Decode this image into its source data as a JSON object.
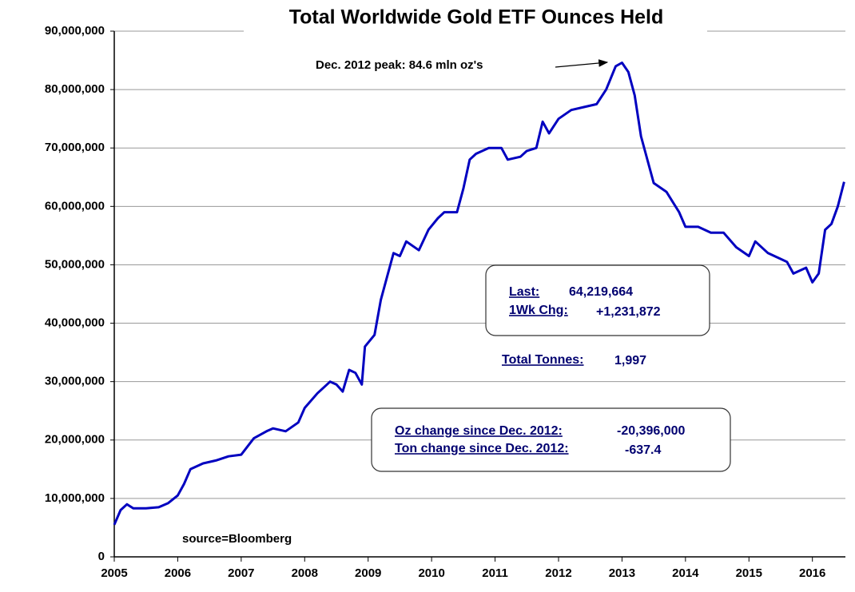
{
  "chart_data": {
    "type": "line",
    "title": "Total Worldwide Gold ETF Ounces Held",
    "color": "#0000c0",
    "xlim": [
      2005,
      2016.52
    ],
    "xticks": [
      2005,
      2006,
      2007,
      2008,
      2009,
      2010,
      2011,
      2012,
      2013,
      2014,
      2015,
      2016
    ],
    "ylim": [
      0,
      90000000
    ],
    "yticks": [
      0,
      {
        "value": 10000000,
        "label": "10,000,000"
      },
      {
        "value": 20000000,
        "label": "20,000,000"
      },
      {
        "value": 30000000,
        "label": "30,000,000"
      },
      {
        "value": 40000000,
        "label": "40,000,000"
      },
      {
        "value": 50000000,
        "label": "50,000,000"
      },
      {
        "value": 60000000,
        "label": "60,000,000"
      },
      {
        "value": 70000000,
        "label": "70,000,000"
      },
      {
        "value": 80000000,
        "label": "80,000,000"
      },
      {
        "value": 90000000,
        "label": "90,000,000"
      }
    ],
    "grid": true,
    "x": [
      2005.0,
      2005.1,
      2005.2,
      2005.3,
      2005.5,
      2005.7,
      2005.85,
      2006.0,
      2006.1,
      2006.2,
      2006.4,
      2006.6,
      2006.8,
      2007.0,
      2007.2,
      2007.4,
      2007.5,
      2007.7,
      2007.9,
      2008.0,
      2008.2,
      2008.4,
      2008.5,
      2008.6,
      2008.7,
      2008.8,
      2008.9,
      2008.95,
      2009.1,
      2009.2,
      2009.3,
      2009.4,
      2009.5,
      2009.6,
      2009.8,
      2009.95,
      2010.1,
      2010.2,
      2010.4,
      2010.5,
      2010.6,
      2010.7,
      2010.9,
      2011.1,
      2011.2,
      2011.4,
      2011.5,
      2011.65,
      2011.75,
      2011.85,
      2012.0,
      2012.2,
      2012.4,
      2012.6,
      2012.75,
      2012.9,
      2013.0,
      2013.1,
      2013.2,
      2013.3,
      2013.5,
      2013.7,
      2013.9,
      2014.0,
      2014.2,
      2014.4,
      2014.6,
      2014.8,
      2015.0,
      2015.1,
      2015.3,
      2015.5,
      2015.6,
      2015.7,
      2015.9,
      2016.0,
      2016.1,
      2016.2,
      2016.3,
      2016.4,
      2016.5
    ],
    "values": [
      5500000,
      8000000,
      9000000,
      8300000,
      8300000,
      8500000,
      9200000,
      10500000,
      12500000,
      15000000,
      16000000,
      16500000,
      17200000,
      17500000,
      20300000,
      21500000,
      22000000,
      21500000,
      23000000,
      25500000,
      28000000,
      30000000,
      29500000,
      28300000,
      32000000,
      31500000,
      29500000,
      36000000,
      38000000,
      44000000,
      48000000,
      52000000,
      51500000,
      54000000,
      52500000,
      56000000,
      58000000,
      59000000,
      59000000,
      63000000,
      68000000,
      69000000,
      70000000,
      70000000,
      68000000,
      68500000,
      69500000,
      70000000,
      74500000,
      72500000,
      75000000,
      76500000,
      77000000,
      77500000,
      80000000,
      84000000,
      84600000,
      83000000,
      79000000,
      72000000,
      64000000,
      62500000,
      59000000,
      56500000,
      56500000,
      55500000,
      55500000,
      53000000,
      51500000,
      54000000,
      52000000,
      51000000,
      50500000,
      48500000,
      49500000,
      47000000,
      48500000,
      56000000,
      57000000,
      60000000,
      64200000
    ],
    "annotations": {
      "peak": "Dec. 2012 peak:  84.6 mln oz's",
      "last_label": "Last:",
      "last_value": "64,219,664",
      "wk_label": "1Wk Chg:",
      "wk_value": "+1,231,872",
      "tonnes_label": "Total Tonnes:",
      "tonnes_value": "1,997",
      "oz_label": "Oz change since Dec. 2012:",
      "oz_value": "-20,396,000",
      "ton_label": "Ton change since Dec. 2012:",
      "ton_value": "-637.4"
    },
    "source": "source=Bloomberg"
  }
}
